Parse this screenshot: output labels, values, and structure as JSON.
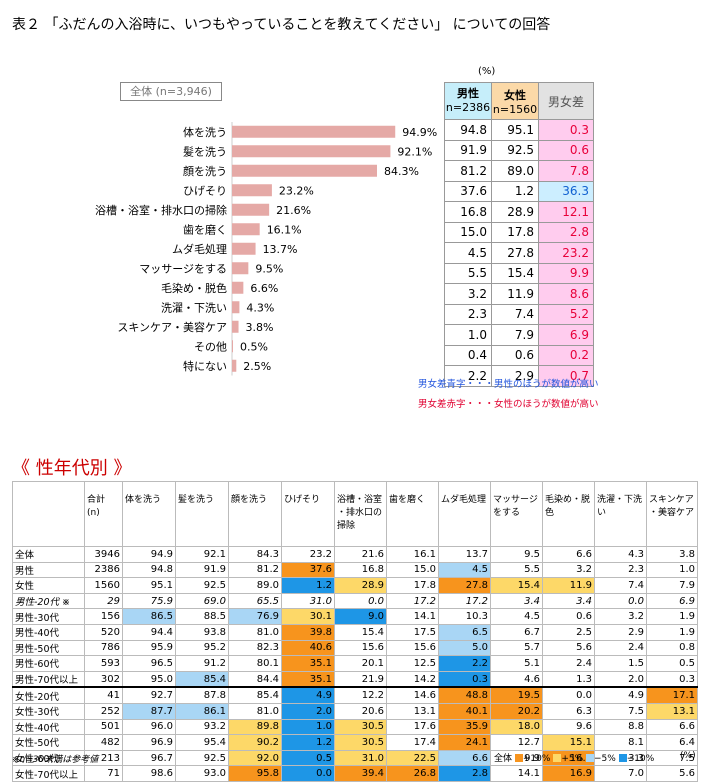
{
  "title": "表２ 「ふだんの入浴時に、いつもやっていることを教えてください」 についての回答",
  "total_label": "全体 (n=3,946)",
  "unit": "(%)",
  "right_table": {
    "male": "男性",
    "male_n": "n=2386",
    "female": "女性",
    "female_n": "n=1560",
    "diff": "男女差"
  },
  "notes": {
    "blue": "男女差青字・・・男性のほうが数値が高い",
    "red": "男女差赤字・・・女性のほうが数値が高い"
  },
  "chart_data": {
    "type": "bar",
    "orientation": "horizontal",
    "categories": [
      "体を洗う",
      "髪を洗う",
      "顔を洗う",
      "ひげそり",
      "浴槽・浴室・排水口の掃除",
      "歯を磨く",
      "ムダ毛処理",
      "マッサージをする",
      "毛染め・脱色",
      "洗濯・下洗い",
      "スキンケア・美容ケア",
      "その他",
      "特にない"
    ],
    "values": [
      94.9,
      92.1,
      84.3,
      23.2,
      21.6,
      16.1,
      13.7,
      9.5,
      6.6,
      4.3,
      3.8,
      0.5,
      2.5
    ],
    "value_labels": [
      "94.9%",
      "92.1%",
      "84.3%",
      "23.2%",
      "21.6%",
      "16.1%",
      "13.7%",
      "9.5%",
      "6.6%",
      "4.3%",
      "3.8%",
      "0.5%",
      "2.5%"
    ],
    "male": [
      "94.8",
      "91.9",
      "81.2",
      "37.6",
      "16.8",
      "15.0",
      "4.5",
      "5.5",
      "3.2",
      "2.3",
      "1.0",
      "0.4",
      "2.2"
    ],
    "female": [
      "95.1",
      "92.5",
      "89.0",
      "1.2",
      "28.9",
      "17.8",
      "27.8",
      "15.4",
      "11.9",
      "7.4",
      "7.9",
      "0.6",
      "2.9"
    ],
    "diff": [
      {
        "v": "0.3",
        "c": "pink"
      },
      {
        "v": "0.6",
        "c": "pink"
      },
      {
        "v": "7.8",
        "c": "pink"
      },
      {
        "v": "36.3",
        "c": "blue"
      },
      {
        "v": "12.1",
        "c": "pink"
      },
      {
        "v": "2.8",
        "c": "pink"
      },
      {
        "v": "23.2",
        "c": "pink"
      },
      {
        "v": "9.9",
        "c": "pink"
      },
      {
        "v": "8.6",
        "c": "pink"
      },
      {
        "v": "5.2",
        "c": "pink"
      },
      {
        "v": "6.9",
        "c": "pink"
      },
      {
        "v": "0.2",
        "c": "pink"
      },
      {
        "v": "0.7",
        "c": "pink"
      }
    ],
    "bar_color": "#e5a9a6",
    "xlim": [
      0,
      100
    ]
  },
  "section_title": "《 性年代別 》",
  "big_table": {
    "headers": [
      "",
      "合計\n(n)",
      "体を洗う",
      "髪を洗う",
      "顔を洗う",
      "ひげそり",
      "浴槽・浴室\n・排水口の\n掃除",
      "歯を磨く",
      "ムダ毛処理",
      "マッサージ\nをする",
      "毛染め・脱\n色",
      "洗濯・下洗\nい",
      "スキンケア\n・美容ケア"
    ],
    "rows": [
      {
        "label": "全体",
        "cells": [
          [
            "3946",
            ""
          ],
          [
            "94.9",
            ""
          ],
          [
            "92.1",
            ""
          ],
          [
            "84.3",
            ""
          ],
          [
            "23.2",
            ""
          ],
          [
            "21.6",
            ""
          ],
          [
            "16.1",
            ""
          ],
          [
            "13.7",
            ""
          ],
          [
            "9.5",
            ""
          ],
          [
            "6.6",
            ""
          ],
          [
            "4.3",
            ""
          ],
          [
            "3.8",
            ""
          ]
        ]
      },
      {
        "label": "男性",
        "cells": [
          [
            "2386",
            ""
          ],
          [
            "94.8",
            ""
          ],
          [
            "91.9",
            ""
          ],
          [
            "81.2",
            ""
          ],
          [
            "37.6",
            "c1"
          ],
          [
            "16.8",
            ""
          ],
          [
            "15.0",
            ""
          ],
          [
            "4.5",
            "c3"
          ],
          [
            "5.5",
            ""
          ],
          [
            "3.2",
            ""
          ],
          [
            "2.3",
            ""
          ],
          [
            "1.0",
            ""
          ]
        ]
      },
      {
        "label": "女性",
        "cells": [
          [
            "1560",
            ""
          ],
          [
            "95.1",
            ""
          ],
          [
            "92.5",
            ""
          ],
          [
            "89.0",
            ""
          ],
          [
            "1.2",
            "c4"
          ],
          [
            "28.9",
            "c2"
          ],
          [
            "17.8",
            ""
          ],
          [
            "27.8",
            "c1"
          ],
          [
            "15.4",
            "c2"
          ],
          [
            "11.9",
            "c2"
          ],
          [
            "7.4",
            ""
          ],
          [
            "7.9",
            ""
          ]
        ]
      },
      {
        "label": "男性-20代 ※",
        "italic": true,
        "cells": [
          [
            "29",
            ""
          ],
          [
            "75.9",
            ""
          ],
          [
            "69.0",
            ""
          ],
          [
            "65.5",
            ""
          ],
          [
            "31.0",
            ""
          ],
          [
            "0.0",
            ""
          ],
          [
            "17.2",
            ""
          ],
          [
            "17.2",
            ""
          ],
          [
            "3.4",
            ""
          ],
          [
            "3.4",
            ""
          ],
          [
            "0.0",
            ""
          ],
          [
            "6.9",
            ""
          ]
        ]
      },
      {
        "label": "男性-30代",
        "cells": [
          [
            "156",
            ""
          ],
          [
            "86.5",
            "c3"
          ],
          [
            "88.5",
            ""
          ],
          [
            "76.9",
            "c3"
          ],
          [
            "30.1",
            "c2"
          ],
          [
            "9.0",
            "c4"
          ],
          [
            "14.1",
            ""
          ],
          [
            "10.3",
            ""
          ],
          [
            "4.5",
            ""
          ],
          [
            "0.6",
            ""
          ],
          [
            "3.2",
            ""
          ],
          [
            "1.9",
            ""
          ]
        ]
      },
      {
        "label": "男性-40代",
        "cells": [
          [
            "520",
            ""
          ],
          [
            "94.4",
            ""
          ],
          [
            "93.8",
            ""
          ],
          [
            "81.0",
            ""
          ],
          [
            "39.8",
            "c1"
          ],
          [
            "15.4",
            ""
          ],
          [
            "17.5",
            ""
          ],
          [
            "6.5",
            "c3"
          ],
          [
            "6.7",
            ""
          ],
          [
            "2.5",
            ""
          ],
          [
            "2.9",
            ""
          ],
          [
            "1.9",
            ""
          ]
        ]
      },
      {
        "label": "男性-50代",
        "cells": [
          [
            "786",
            ""
          ],
          [
            "95.9",
            ""
          ],
          [
            "95.2",
            ""
          ],
          [
            "82.3",
            ""
          ],
          [
            "40.6",
            "c1"
          ],
          [
            "15.6",
            ""
          ],
          [
            "15.6",
            ""
          ],
          [
            "5.0",
            "c3"
          ],
          [
            "5.7",
            ""
          ],
          [
            "5.6",
            ""
          ],
          [
            "2.4",
            ""
          ],
          [
            "0.8",
            ""
          ]
        ]
      },
      {
        "label": "男性-60代",
        "cells": [
          [
            "593",
            ""
          ],
          [
            "96.5",
            ""
          ],
          [
            "91.2",
            ""
          ],
          [
            "80.1",
            ""
          ],
          [
            "35.1",
            "c1"
          ],
          [
            "20.1",
            ""
          ],
          [
            "12.5",
            ""
          ],
          [
            "2.2",
            "c4"
          ],
          [
            "5.1",
            ""
          ],
          [
            "2.4",
            ""
          ],
          [
            "1.5",
            ""
          ],
          [
            "0.5",
            ""
          ]
        ]
      },
      {
        "label": "男性-70代以上",
        "cells": [
          [
            "302",
            ""
          ],
          [
            "95.0",
            ""
          ],
          [
            "85.4",
            "c3"
          ],
          [
            "84.4",
            ""
          ],
          [
            "35.1",
            "c1"
          ],
          [
            "21.9",
            ""
          ],
          [
            "14.2",
            ""
          ],
          [
            "0.3",
            "c4"
          ],
          [
            "4.6",
            ""
          ],
          [
            "1.3",
            ""
          ],
          [
            "2.0",
            ""
          ],
          [
            "0.3",
            ""
          ]
        ]
      },
      {
        "label": "女性-20代",
        "group": true,
        "cells": [
          [
            "41",
            ""
          ],
          [
            "92.7",
            ""
          ],
          [
            "87.8",
            ""
          ],
          [
            "85.4",
            ""
          ],
          [
            "4.9",
            "c4"
          ],
          [
            "12.2",
            ""
          ],
          [
            "14.6",
            ""
          ],
          [
            "48.8",
            "c1"
          ],
          [
            "19.5",
            "c1"
          ],
          [
            "0.0",
            ""
          ],
          [
            "4.9",
            ""
          ],
          [
            "17.1",
            "c1"
          ]
        ]
      },
      {
        "label": "女性-30代",
        "cells": [
          [
            "252",
            ""
          ],
          [
            "87.7",
            "c3"
          ],
          [
            "86.1",
            "c3"
          ],
          [
            "81.0",
            ""
          ],
          [
            "2.0",
            "c4"
          ],
          [
            "20.6",
            ""
          ],
          [
            "13.1",
            ""
          ],
          [
            "40.1",
            "c1"
          ],
          [
            "20.2",
            "c1"
          ],
          [
            "6.3",
            ""
          ],
          [
            "7.5",
            ""
          ],
          [
            "13.1",
            "c2"
          ]
        ]
      },
      {
        "label": "女性-40代",
        "cells": [
          [
            "501",
            ""
          ],
          [
            "96.0",
            ""
          ],
          [
            "93.2",
            ""
          ],
          [
            "89.8",
            "c2"
          ],
          [
            "1.0",
            "c4"
          ],
          [
            "30.5",
            "c2"
          ],
          [
            "17.6",
            ""
          ],
          [
            "35.9",
            "c1"
          ],
          [
            "18.0",
            "c2"
          ],
          [
            "9.6",
            ""
          ],
          [
            "8.8",
            ""
          ],
          [
            "6.6",
            ""
          ]
        ]
      },
      {
        "label": "女性-50代",
        "cells": [
          [
            "482",
            ""
          ],
          [
            "96.9",
            ""
          ],
          [
            "95.4",
            ""
          ],
          [
            "90.2",
            "c2"
          ],
          [
            "1.2",
            "c4"
          ],
          [
            "30.5",
            "c2"
          ],
          [
            "17.4",
            ""
          ],
          [
            "24.1",
            "c1"
          ],
          [
            "12.7",
            ""
          ],
          [
            "15.1",
            "c2"
          ],
          [
            "8.1",
            ""
          ],
          [
            "6.4",
            ""
          ]
        ]
      },
      {
        "label": "女性-60代",
        "cells": [
          [
            "213",
            ""
          ],
          [
            "96.7",
            ""
          ],
          [
            "92.5",
            ""
          ],
          [
            "92.0",
            "c2"
          ],
          [
            "0.5",
            "c4"
          ],
          [
            "31.0",
            "c2"
          ],
          [
            "22.5",
            "c2"
          ],
          [
            "6.6",
            "c3"
          ],
          [
            "9.9",
            ""
          ],
          [
            "16.9",
            "c1"
          ],
          [
            "3.3",
            ""
          ],
          [
            "7.5",
            ""
          ]
        ]
      },
      {
        "label": "女性-70代以上",
        "cells": [
          [
            "71",
            ""
          ],
          [
            "98.6",
            ""
          ],
          [
            "93.0",
            ""
          ],
          [
            "95.8",
            "c1"
          ],
          [
            "0.0",
            "c4"
          ],
          [
            "39.4",
            "c1"
          ],
          [
            "26.8",
            "c1"
          ],
          [
            "2.8",
            "c4"
          ],
          [
            "14.1",
            ""
          ],
          [
            "16.9",
            "c1"
          ],
          [
            "7.0",
            ""
          ],
          [
            "5.6",
            ""
          ]
        ]
      }
    ]
  },
  "footnote": "※n=30未満は参考値",
  "legend": {
    "prefix": "全体",
    "items": [
      "+10%",
      "+5%",
      "−5%",
      "−10%"
    ],
    "unit": "(%)"
  },
  "colors": {
    "plus10": "#f7941d",
    "plus5": "#fdd868",
    "minus5": "#a9d6f5",
    "minus10": "#1e96e6"
  }
}
